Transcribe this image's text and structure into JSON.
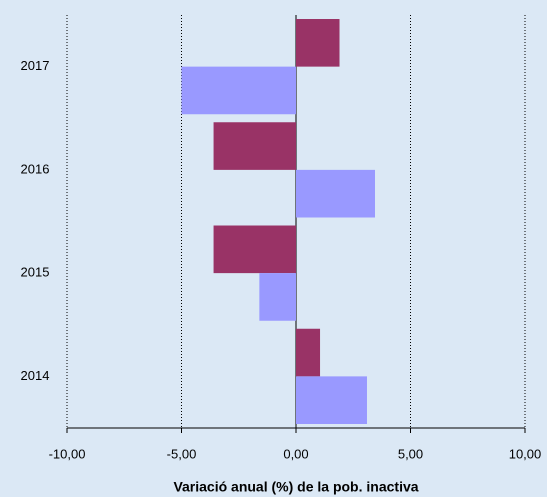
{
  "chart_data": {
    "type": "hbar",
    "x_label": "Variació anual (%) de la pob. inactiva",
    "categories": [
      "2017",
      "2016",
      "2015",
      "2014"
    ],
    "series": [
      {
        "color": "#993366",
        "values": [
          1.9,
          -3.6,
          -3.6,
          1.05
        ]
      },
      {
        "color": "#9999ff",
        "values": [
          -5.0,
          3.45,
          -1.6,
          3.1
        ]
      }
    ],
    "xlim": [
      -10,
      10
    ],
    "xticks": [
      {
        "value": -10,
        "label": "-10,00"
      },
      {
        "value": -5,
        "label": "-5,00"
      },
      {
        "value": 0,
        "label": "0,00"
      },
      {
        "value": 5,
        "label": "5,00"
      },
      {
        "value": 10,
        "label": "10,00"
      }
    ],
    "grid": true
  }
}
